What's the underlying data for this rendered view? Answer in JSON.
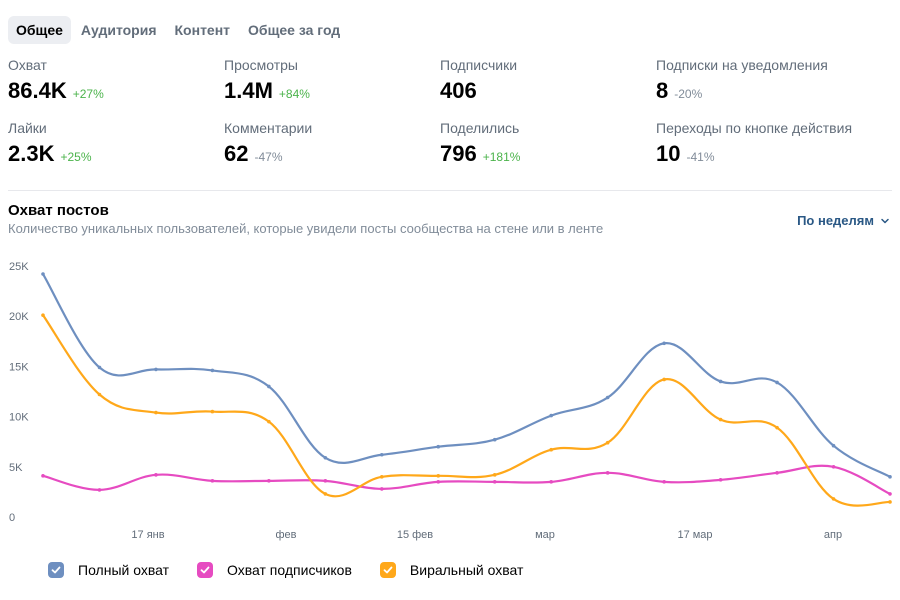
{
  "tabs": [
    {
      "label": "Общее",
      "active": true
    },
    {
      "label": "Аудитория",
      "active": false
    },
    {
      "label": "Контент",
      "active": false
    },
    {
      "label": "Общее за год",
      "active": false
    }
  ],
  "stats": [
    {
      "label": "Охват",
      "value": "86.4K",
      "delta": "+27%",
      "trend": "up"
    },
    {
      "label": "Просмотры",
      "value": "1.4M",
      "delta": "+84%",
      "trend": "up"
    },
    {
      "label": "Подписчики",
      "value": "406",
      "delta": "",
      "trend": "none"
    },
    {
      "label": "Подписки на уведомления",
      "value": "8",
      "delta": "-20%",
      "trend": "down"
    },
    {
      "label": "Лайки",
      "value": "2.3K",
      "delta": "+25%",
      "trend": "up"
    },
    {
      "label": "Комментарии",
      "value": "62",
      "delta": "-47%",
      "trend": "down"
    },
    {
      "label": "Поделились",
      "value": "796",
      "delta": "+181%",
      "trend": "up"
    },
    {
      "label": "Переходы по кнопке действия",
      "value": "10",
      "delta": "-41%",
      "trend": "down"
    }
  ],
  "chart_header": {
    "title": "Охват постов",
    "subtitle": "Количество уникальных пользователей, которые увидели посты сообщества на стене или в ленте",
    "period_label": "По неделям"
  },
  "colors": {
    "full_reach": "#6e8fc0",
    "subscribers_reach": "#e64bc1",
    "viral_reach": "#ffa81a",
    "positive": "#4bb34b",
    "negative": "#818c99",
    "link": "#2a5885"
  },
  "chart_data": {
    "type": "line",
    "x_tick_labels": [
      "17 янв",
      "фев",
      "15 фев",
      "мар",
      "17 мар",
      "апр"
    ],
    "y_tick_labels": [
      "0",
      "5K",
      "10K",
      "15K",
      "20K",
      "25K"
    ],
    "ylim": [
      0,
      25000
    ],
    "grid": false,
    "legend_position": "bottom-left",
    "series": [
      {
        "name": "Полный охват",
        "color": "#6e8fc0",
        "values": [
          24200,
          14900,
          14700,
          14600,
          13000,
          5900,
          6200,
          7000,
          7700,
          10100,
          11900,
          17300,
          13500,
          13400,
          7100,
          4000
        ]
      },
      {
        "name": "Охват подписчиков",
        "color": "#e64bc1",
        "values": [
          4100,
          2700,
          4200,
          3600,
          3600,
          3600,
          2800,
          3500,
          3500,
          3500,
          4400,
          3500,
          3700,
          4400,
          5000,
          2300
        ]
      },
      {
        "name": "Виральный охват",
        "color": "#ffa81a",
        "values": [
          20100,
          12200,
          10400,
          10500,
          9500,
          2300,
          4000,
          4100,
          4200,
          6700,
          7400,
          13700,
          9700,
          8900,
          1800,
          1500
        ]
      }
    ]
  }
}
